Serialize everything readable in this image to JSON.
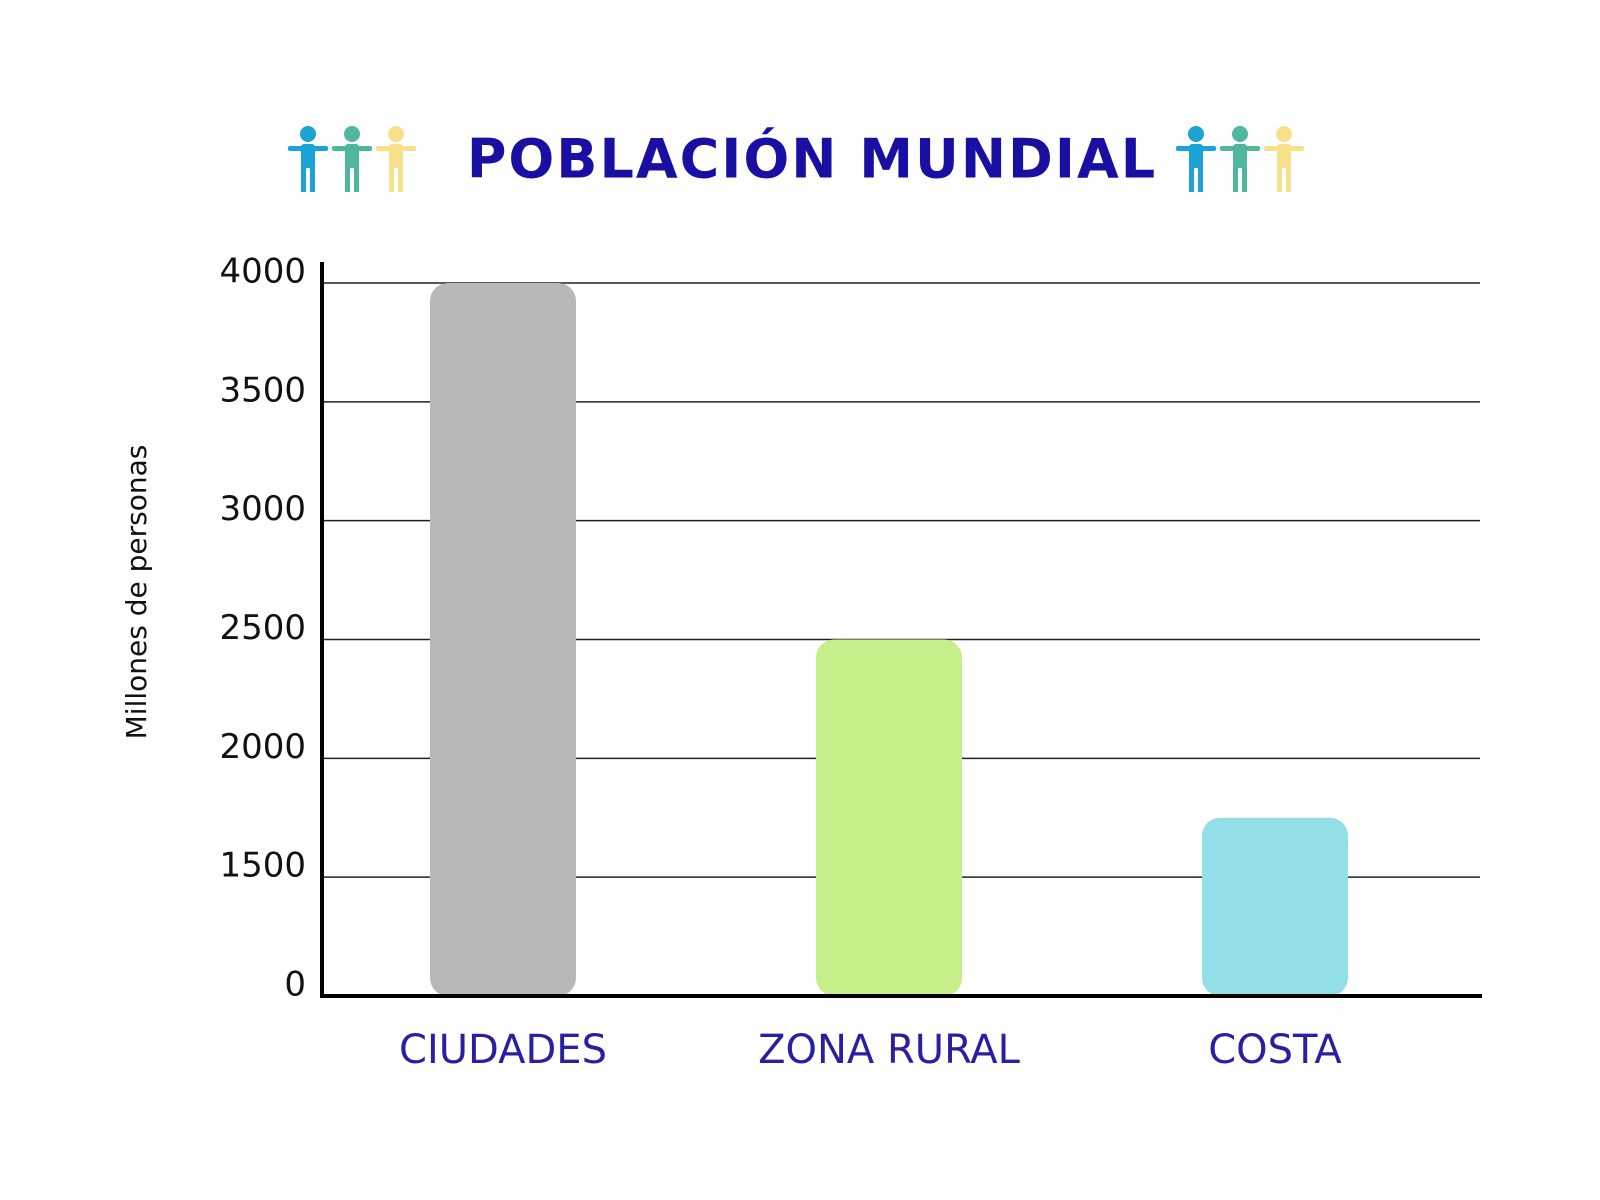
{
  "chart_data": {
    "type": "bar",
    "title": "POBLACIÓN MUNDIAL",
    "y_label": "Millones de personas",
    "categories": [
      "CIUDADES",
      "ZONA RURAL",
      "COSTA"
    ],
    "values": [
      4000,
      2500,
      1750
    ],
    "colors": [
      "#b8b8b8",
      "#c6ef8a",
      "#93dfe8"
    ],
    "ylim": [
      0,
      4000
    ],
    "yticks": [
      0,
      1500,
      2000,
      2500,
      3000,
      3500,
      4000
    ],
    "grid": true
  }
}
